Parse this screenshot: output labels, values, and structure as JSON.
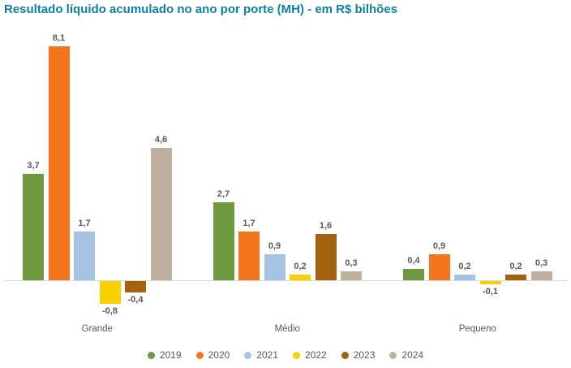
{
  "chart_data": {
    "type": "bar",
    "title": "Resultado líquido acumulado no ano por porte (MH) - em R$ bilhões",
    "categories": [
      "Grande",
      "Médio",
      "Pequeno"
    ],
    "series": [
      {
        "name": "2019",
        "color": "#6f9a42",
        "values": [
          3.7,
          2.7,
          0.4
        ]
      },
      {
        "name": "2020",
        "color": "#f3761f",
        "values": [
          8.1,
          1.7,
          0.9
        ]
      },
      {
        "name": "2021",
        "color": "#a6c3e4",
        "values": [
          1.7,
          0.9,
          0.2
        ]
      },
      {
        "name": "2022",
        "color": "#f8d200",
        "values": [
          -0.8,
          0.2,
          -0.1
        ]
      },
      {
        "name": "2023",
        "color": "#a4610e",
        "values": [
          -0.4,
          1.6,
          0.2
        ]
      },
      {
        "name": "2024",
        "color": "#bfb1a0",
        "values": [
          4.6,
          0.3,
          0.3
        ]
      }
    ],
    "value_label_decimal_separator": ",",
    "ylim": [
      -1,
      8.5
    ],
    "grid": false,
    "legend_position": "bottom",
    "colors": {
      "title": "#107f9f",
      "labels": "#58595b",
      "axis_line": "#d9d9d9",
      "background": "#ffffff"
    }
  }
}
